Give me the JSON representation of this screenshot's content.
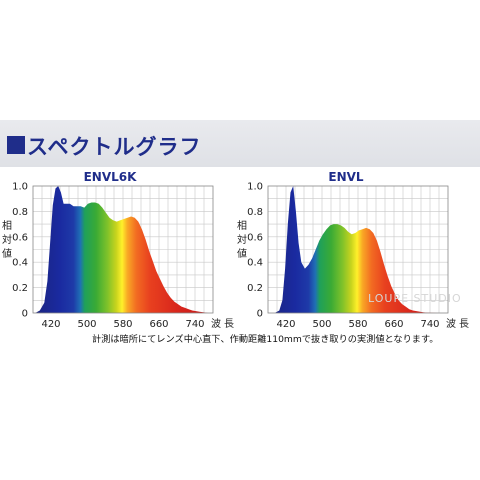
{
  "header": {
    "title": "スペクトルグラフ"
  },
  "note": "計測は暗所にてレンズ中心直下、作動距離110mmで抜き取りの実測値となります。",
  "watermark": "LOUPE STUDIO",
  "colors": {
    "accent": "#1f2d8a"
  },
  "chart_data": [
    {
      "type": "area",
      "title": "ENVL6K",
      "ylabel": "相対値",
      "xlabel": "波長",
      "xlim": [
        380,
        780
      ],
      "ylim": [
        0,
        1.0
      ],
      "xticks": [
        420,
        500,
        580,
        660,
        740
      ],
      "yticks": [
        "0",
        "0.2",
        "0.4",
        "0.6",
        "0.8",
        "1.0"
      ],
      "grid": true,
      "x": [
        385,
        395,
        405,
        412,
        418,
        424,
        430,
        436,
        442,
        448,
        454,
        462,
        470,
        478,
        486,
        494,
        502,
        510,
        518,
        526,
        534,
        542,
        550,
        558,
        566,
        574,
        582,
        590,
        598,
        606,
        614,
        622,
        630,
        638,
        646,
        654,
        662,
        670,
        678,
        686,
        694,
        702,
        710,
        718,
        726,
        734,
        742,
        750,
        760,
        770
      ],
      "y": [
        0,
        0.02,
        0.08,
        0.25,
        0.55,
        0.85,
        0.98,
        1.0,
        0.95,
        0.86,
        0.86,
        0.86,
        0.84,
        0.84,
        0.84,
        0.83,
        0.86,
        0.87,
        0.87,
        0.86,
        0.83,
        0.79,
        0.75,
        0.73,
        0.72,
        0.73,
        0.74,
        0.75,
        0.76,
        0.75,
        0.72,
        0.66,
        0.58,
        0.49,
        0.41,
        0.33,
        0.27,
        0.21,
        0.16,
        0.12,
        0.09,
        0.07,
        0.05,
        0.04,
        0.03,
        0.02,
        0.015,
        0.01,
        0.005,
        0
      ]
    },
    {
      "type": "area",
      "title": "ENVL",
      "ylabel": "相対値",
      "xlabel": "波長",
      "xlim": [
        380,
        780
      ],
      "ylim": [
        0,
        1.0
      ],
      "xticks": [
        420,
        500,
        580,
        660,
        740
      ],
      "yticks": [
        "0",
        "0.2",
        "0.4",
        "0.6",
        "0.8",
        "1.0"
      ],
      "grid": true,
      "x": [
        385,
        395,
        405,
        412,
        418,
        424,
        430,
        436,
        442,
        448,
        454,
        462,
        470,
        478,
        486,
        494,
        502,
        510,
        518,
        526,
        534,
        542,
        550,
        558,
        566,
        574,
        582,
        590,
        598,
        606,
        614,
        622,
        630,
        638,
        646,
        654,
        662,
        670,
        678,
        686,
        694,
        702,
        710,
        718,
        726,
        734,
        742,
        750,
        760,
        770
      ],
      "y": [
        0,
        0,
        0.02,
        0.1,
        0.35,
        0.7,
        0.95,
        1.0,
        0.8,
        0.55,
        0.4,
        0.35,
        0.38,
        0.43,
        0.5,
        0.57,
        0.62,
        0.66,
        0.69,
        0.7,
        0.7,
        0.69,
        0.67,
        0.64,
        0.62,
        0.63,
        0.65,
        0.66,
        0.67,
        0.66,
        0.63,
        0.57,
        0.48,
        0.38,
        0.29,
        0.21,
        0.15,
        0.1,
        0.07,
        0.05,
        0.03,
        0.02,
        0.015,
        0.01,
        0.005,
        0.003,
        0.002,
        0.001,
        0,
        0
      ]
    }
  ]
}
